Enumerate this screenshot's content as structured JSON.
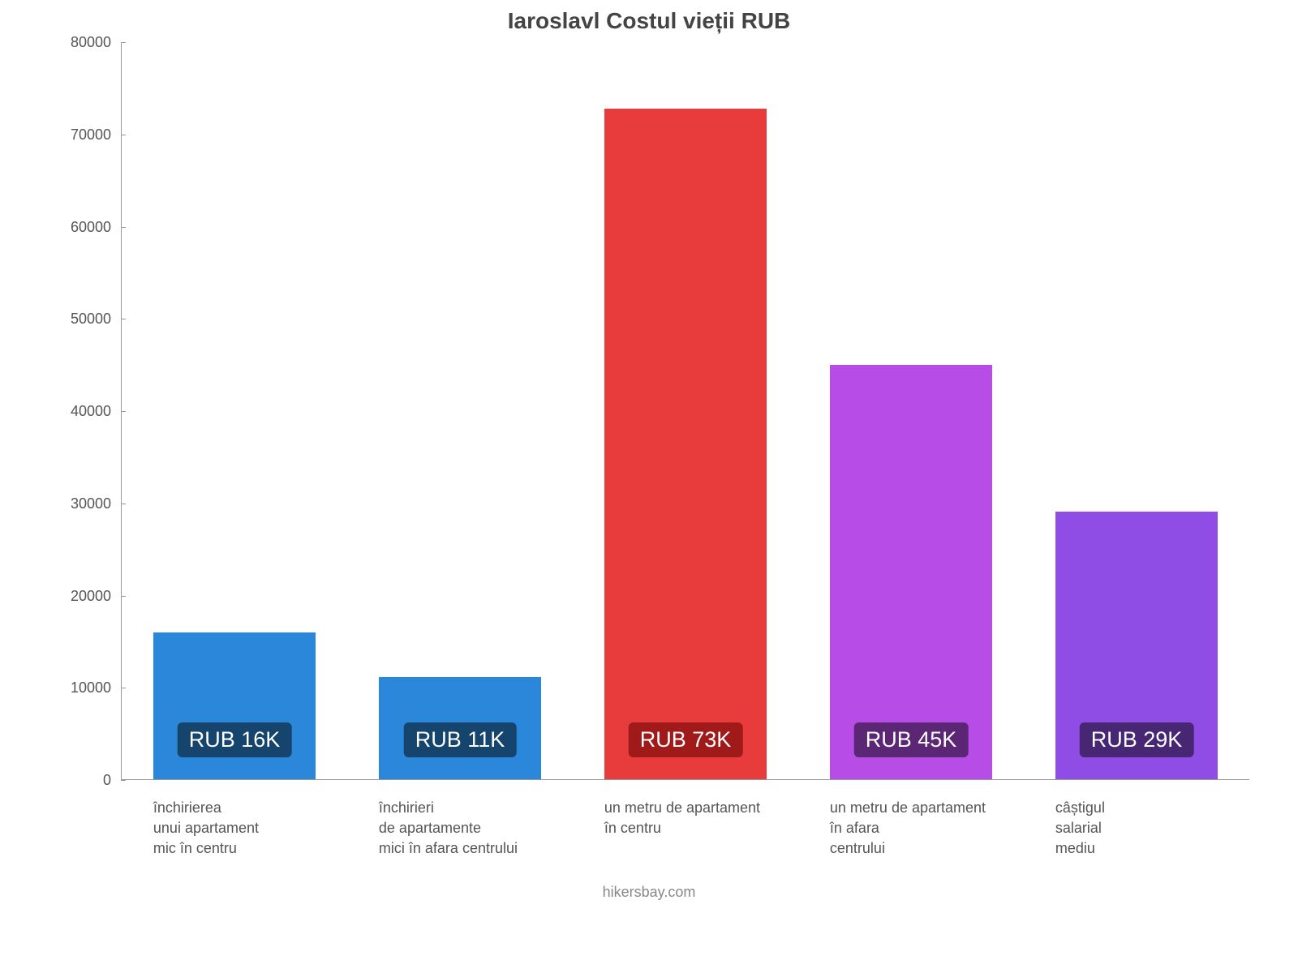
{
  "chart": {
    "type": "bar",
    "title": "Iaroslavl Costul vieții RUB",
    "title_fontsize": 28,
    "title_color": "#444444",
    "background_color": "#ffffff",
    "axis_color": "#999999",
    "ylabel_color": "#555555",
    "xlabel_color": "#555555",
    "xlabel_fontsize": 18,
    "ylim": [
      0,
      80000
    ],
    "ytick_step": 10000,
    "yticks": [
      {
        "v": 0,
        "label": "0"
      },
      {
        "v": 10000,
        "label": "10000"
      },
      {
        "v": 20000,
        "label": "20000"
      },
      {
        "v": 30000,
        "label": "30000"
      },
      {
        "v": 40000,
        "label": "40000"
      },
      {
        "v": 50000,
        "label": "50000"
      },
      {
        "v": 60000,
        "label": "60000"
      },
      {
        "v": 70000,
        "label": "70000"
      },
      {
        "v": 80000,
        "label": "80000"
      }
    ],
    "bar_width": 0.72,
    "value_badge_fontsize": 27,
    "bars": [
      {
        "label_lines": "închirierea\nunui apartament\nmic în centru",
        "value": 16000,
        "display": "RUB 16K",
        "color": "#2b87d9",
        "badge_bg": "#15446d"
      },
      {
        "label_lines": "închirieri\nde apartamente\nmici în afara centrului",
        "value": 11200,
        "display": "RUB 11K",
        "color": "#2b87d9",
        "badge_bg": "#15446d"
      },
      {
        "label_lines": "un metru de apartament\nîn centru",
        "value": 72800,
        "display": "RUB 73K",
        "color": "#e83b3c",
        "badge_bg": "#a11a1a"
      },
      {
        "label_lines": "un metru de apartament\nîn afara\ncentrului",
        "value": 45000,
        "display": "RUB 45K",
        "color": "#b74ce6",
        "badge_bg": "#5b2673"
      },
      {
        "label_lines": "câștigul\nsalarial\nmediu",
        "value": 29100,
        "display": "RUB 29K",
        "color": "#8f4de6",
        "badge_bg": "#472673"
      }
    ],
    "credit": "hikersbay.com",
    "credit_color": "#888888",
    "credit_fontsize": 18
  }
}
